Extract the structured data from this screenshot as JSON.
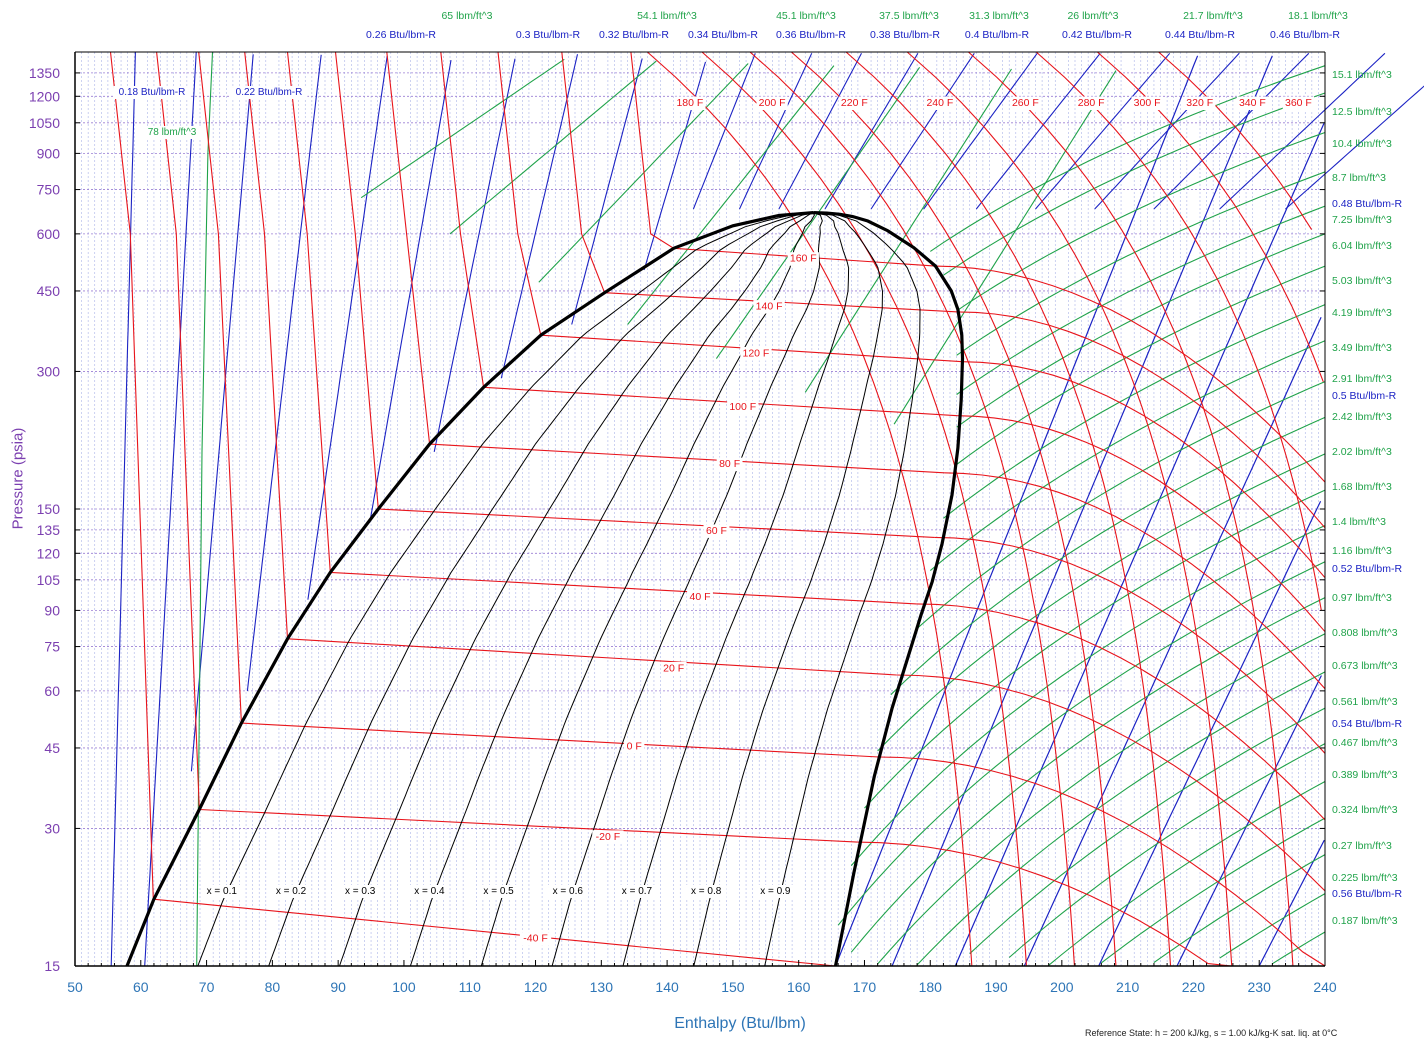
{
  "chart_data": {
    "type": "line",
    "title": "",
    "xlabel": "Enthalpy (Btu/lbm)",
    "ylabel": "Pressure (psia)",
    "xlim": [
      50,
      240
    ],
    "ylim": [
      15,
      1500
    ],
    "y_scale": "log",
    "grid": true,
    "x_ticks": [
      50,
      60,
      70,
      80,
      90,
      100,
      110,
      120,
      130,
      140,
      150,
      160,
      170,
      180,
      190,
      200,
      210,
      220,
      230,
      240
    ],
    "y_ticks": [
      15,
      30,
      45,
      60,
      75,
      90,
      105,
      120,
      135,
      150,
      300,
      450,
      600,
      750,
      900,
      1050,
      1200,
      1350
    ],
    "colors": {
      "dome": "#000000",
      "quality": "#000000",
      "isotherm": "#e8141b",
      "entropy": "#1c23c4",
      "density": "#20a34a",
      "y_axis_text": "#7b3fb0",
      "x_axis_text": "#2e75b6"
    },
    "saturation_dome": {
      "liquid": [
        [
          57.9,
          15
        ],
        [
          62,
          21
        ],
        [
          68.9,
          33
        ],
        [
          75.3,
          51
        ],
        [
          82.3,
          78
        ],
        [
          88.8,
          109
        ],
        [
          96.1,
          150
        ],
        [
          103.9,
          208
        ],
        [
          112.1,
          277
        ],
        [
          120.8,
          360
        ],
        [
          130.5,
          446
        ],
        [
          141,
          558
        ],
        [
          150,
          625
        ],
        [
          157,
          658
        ],
        [
          162.2,
          668
        ]
      ],
      "vapor": [
        [
          165.6,
          15
        ],
        [
          168.4,
          24
        ],
        [
          171.5,
          39
        ],
        [
          174.2,
          55
        ],
        [
          176.6,
          71
        ],
        [
          178.6,
          88
        ],
        [
          180.3,
          104
        ],
        [
          181.8,
          126
        ],
        [
          183.3,
          161
        ],
        [
          184.2,
          204
        ],
        [
          184.7,
          260
        ],
        [
          184.9,
          320
        ],
        [
          184.8,
          360
        ],
        [
          184.2,
          410
        ],
        [
          183.2,
          450
        ],
        [
          180.8,
          510
        ],
        [
          177.5,
          560
        ],
        [
          173.5,
          610
        ],
        [
          170.5,
          640
        ],
        [
          168.2,
          655
        ],
        [
          166.3,
          662
        ],
        [
          164.3,
          666
        ],
        [
          162.2,
          668
        ]
      ]
    },
    "quality_lines": [
      {
        "label": "x = 0.1",
        "x": 0.1
      },
      {
        "label": "x = 0.2",
        "x": 0.2
      },
      {
        "label": "x = 0.3",
        "x": 0.3
      },
      {
        "label": "x = 0.4",
        "x": 0.4
      },
      {
        "label": "x = 0.5",
        "x": 0.5
      },
      {
        "label": "x = 0.6",
        "x": 0.6
      },
      {
        "label": "x = 0.7",
        "x": 0.7
      },
      {
        "label": "x = 0.8",
        "x": 0.8
      },
      {
        "label": "x = 0.9",
        "x": 0.9
      }
    ],
    "isotherms_sat": [
      {
        "label": "-40 F",
        "h_liq": 61.9,
        "p_liq": 21,
        "h_vap": 165.6,
        "p_vap": 15
      },
      {
        "label": "-20 F",
        "h_liq": 68.9,
        "p_liq": 33,
        "h_vap": 168.9,
        "p_vap": 28
      },
      {
        "label": "0 F",
        "h_liq": 75.3,
        "p_liq": 51,
        "h_vap": 172.2,
        "p_vap": 43
      },
      {
        "label": "20 F",
        "h_liq": 82.3,
        "p_liq": 78,
        "h_vap": 174.9,
        "p_vap": 65
      },
      {
        "label": "40 F",
        "h_liq": 88.8,
        "p_liq": 109,
        "h_vap": 177.9,
        "p_vap": 93
      },
      {
        "label": "60 F",
        "h_liq": 96.1,
        "p_liq": 150,
        "h_vap": 180.6,
        "p_vap": 130
      },
      {
        "label": "80 F",
        "h_liq": 103.9,
        "p_liq": 208,
        "h_vap": 182.1,
        "p_vap": 180
      },
      {
        "label": "100 F",
        "h_liq": 112.1,
        "p_liq": 277,
        "h_vap": 184.1,
        "p_vap": 240
      },
      {
        "label": "120 F",
        "h_liq": 120.8,
        "p_liq": 360,
        "h_vap": 184.9,
        "p_vap": 315
      },
      {
        "label": "140 F",
        "h_liq": 130.5,
        "p_liq": 446,
        "h_vap": 184.2,
        "p_vap": 405
      },
      {
        "label": "160 F",
        "h_liq": 141.0,
        "p_liq": 558,
        "h_vap": 180.8,
        "p_vap": 510
      }
    ],
    "isotherm_labels_top": [
      "180 F",
      "200 F",
      "220 F",
      "240 F",
      "260 F",
      "280 F",
      "300 F",
      "320 F",
      "340 F",
      "360 F"
    ],
    "entropy_labels_top": [
      "0.26 Btu/lbm-R",
      "0.3 Btu/lbm-R",
      "0.32 Btu/lbm-R",
      "0.34 Btu/lbm-R",
      "0.36 Btu/lbm-R",
      "0.38 Btu/lbm-R",
      "0.4 Btu/lbm-R",
      "0.42 Btu/lbm-R",
      "0.44 Btu/lbm-R",
      "0.46 Btu/lbm-R"
    ],
    "entropy_labels_inner": [
      "0.18 Btu/lbm-R",
      "0.22 Btu/lbm-R"
    ],
    "entropy_labels_right": [
      "0.48 Btu/lbm-R",
      "0.5 Btu/lbm-R",
      "0.52 Btu/lbm-R",
      "0.54 Btu/lbm-R",
      "0.56 Btu/lbm-R"
    ],
    "density_labels_top": [
      "65 lbm/ft^3",
      "54.1 lbm/ft^3",
      "45.1 lbm/ft^3",
      "37.5 lbm/ft^3",
      "31.3 lbm/ft^3",
      "26 lbm/ft^3",
      "21.7 lbm/ft^3",
      "18.1 lbm/ft^3"
    ],
    "density_labels_inner": [
      "78 lbm/ft^3"
    ],
    "density_labels_right": [
      "15.1 lbm/ft^3",
      "12.5 lbm/ft^3",
      "10.4 lbm/ft^3",
      "8.7 lbm/ft^3",
      "7.25 lbm/ft^3",
      "6.04 lbm/ft^3",
      "5.03 lbm/ft^3",
      "4.19 lbm/ft^3",
      "3.49 lbm/ft^3",
      "2.91 lbm/ft^3",
      "2.42 lbm/ft^3",
      "2.02 lbm/ft^3",
      "1.68 lbm/ft^3",
      "1.4 lbm/ft^3",
      "1.16 lbm/ft^3",
      "0.97 lbm/ft^3",
      "0.808 lbm/ft^3",
      "0.673 lbm/ft^3",
      "0.561 lbm/ft^3",
      "0.467 lbm/ft^3",
      "0.389 lbm/ft^3",
      "0.324 lbm/ft^3",
      "0.27 lbm/ft^3",
      "0.225 lbm/ft^3",
      "0.187 lbm/ft^3"
    ],
    "footnote": "Reference State: h = 200 kJ/kg, s = 1.00 kJ/kg-K sat. liq. at 0°C"
  }
}
